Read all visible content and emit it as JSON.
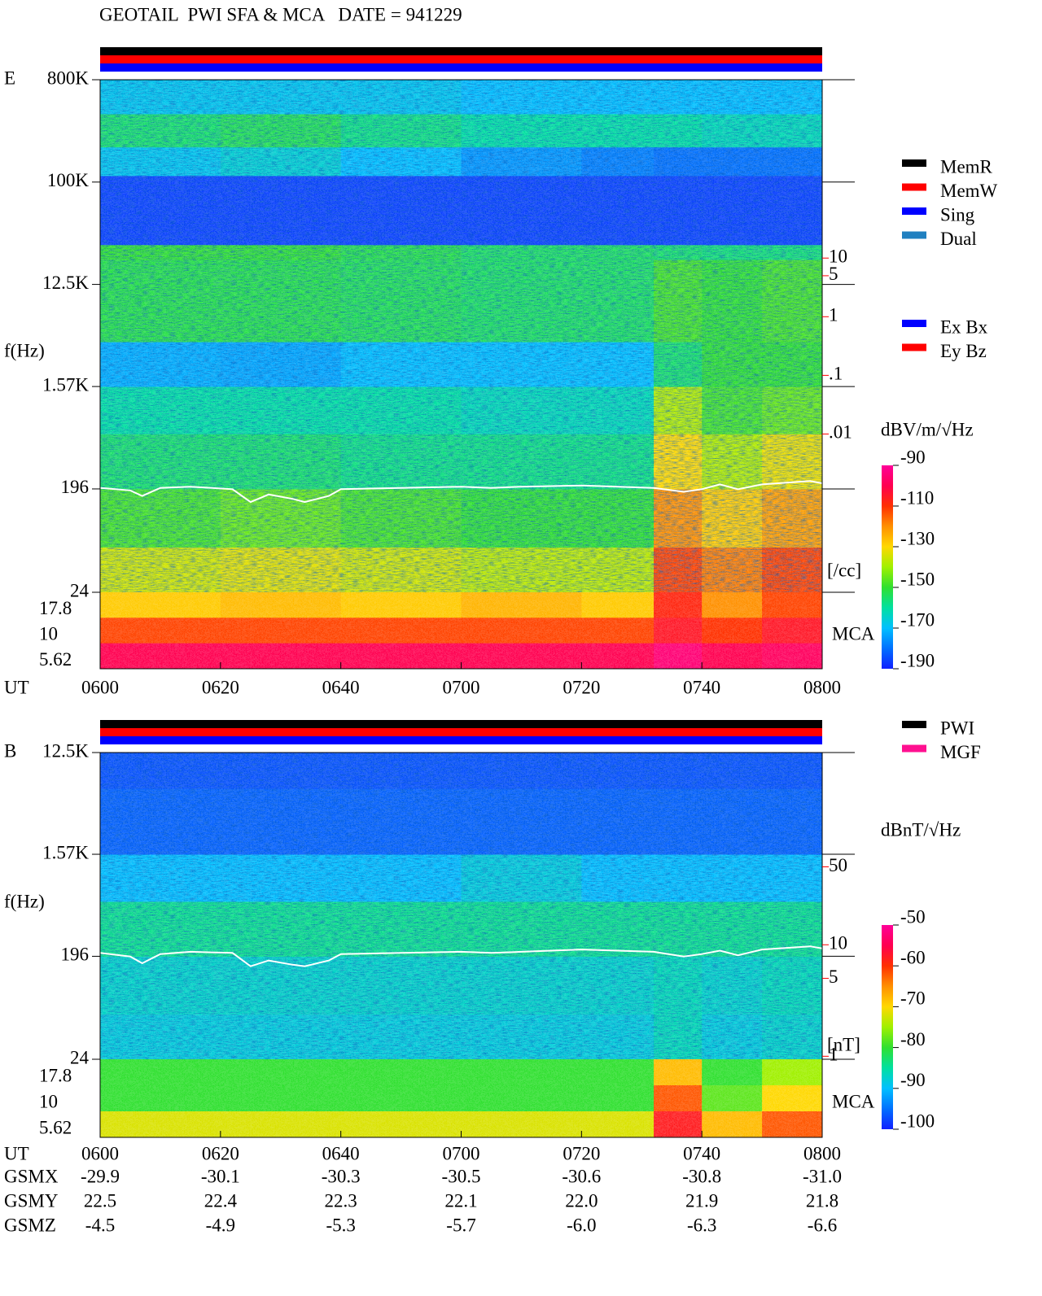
{
  "chart_data": [
    {
      "type": "spectrogram",
      "title": "GEOTAIL  PWI SFA & MCA   DATE = 941229",
      "panel_label": "E",
      "ylabel": "f(Hz)",
      "xlabel": "UT",
      "xlim": [
        0,
        120
      ],
      "xticks": [
        {
          "value": 0,
          "label": "0600"
        },
        {
          "value": 20,
          "label": "0620"
        },
        {
          "value": 40,
          "label": "0640"
        },
        {
          "value": 60,
          "label": "0700"
        },
        {
          "value": 80,
          "label": "0720"
        },
        {
          "value": 100,
          "label": "0740"
        },
        {
          "value": 120,
          "label": "0800"
        }
      ],
      "ylim": [
        24,
        800000
      ],
      "log_y": true,
      "yticks": [
        {
          "value": 800000,
          "label": "800K"
        },
        {
          "value": 100000,
          "label": "100K"
        },
        {
          "value": 12500,
          "label": "12.5K"
        },
        {
          "value": 1570,
          "label": "1.57K"
        },
        196,
        24
      ],
      "y2lim": [
        2e-05,
        11000
      ],
      "y2color": "#ff0000",
      "y2label": "[/cc]",
      "y2ticks": [
        10,
        5,
        1,
        {
          "value": 0.1,
          "label": ".1"
        },
        {
          "value": 0.01,
          "label": ".01"
        }
      ],
      "time_edges": [
        0,
        20,
        40,
        60,
        80,
        92,
        100,
        110,
        120
      ],
      "freq_edges": [
        24,
        60,
        196,
        600,
        1570,
        3900,
        20700,
        28000,
        114000,
        204000,
        400000,
        800000
      ],
      "levels": [
        [
          -135,
          -133,
          -135,
          -137,
          -137,
          -112,
          -118,
          -112
        ],
        [
          -148,
          -145,
          -148,
          -150,
          -150,
          -120,
          -128,
          -122
        ],
        [
          -155,
          -155,
          -157,
          -157,
          -157,
          -130,
          -138,
          -132
        ],
        [
          -160,
          -160,
          -160,
          -162,
          -162,
          -138,
          -148,
          -145
        ],
        [
          -172,
          -173,
          -170,
          -170,
          -170,
          -155,
          -150,
          -150
        ],
        [
          -152,
          -152,
          -153,
          -154,
          -154,
          -148,
          -150,
          -148
        ],
        [
          -150,
          -150,
          -152,
          -154,
          -154,
          -155,
          -156,
          -156
        ],
        [
          -186,
          -186,
          -186,
          -186,
          -186,
          -186,
          -186,
          -186
        ],
        [
          -168,
          -165,
          -170,
          -175,
          -178,
          -180,
          -180,
          -180
        ],
        [
          -155,
          -153,
          -157,
          -160,
          -160,
          -160,
          -162,
          -162
        ],
        [
          -168,
          -168,
          -168,
          -170,
          -170,
          -170,
          -170,
          -170
        ]
      ],
      "mca": {
        "label": "MCA",
        "channels": [
          17.8,
          10,
          5.62
        ],
        "levels": [
          [
            -128,
            -126,
            -128,
            -125,
            -128,
            -108,
            -120,
            -112
          ],
          [
            -112,
            -112,
            -112,
            -112,
            -112,
            -105,
            -110,
            -105
          ],
          [
            -100,
            -100,
            -100,
            -100,
            -100,
            -95,
            -100,
            -98
          ]
        ]
      },
      "zlim": [
        -190,
        -90
      ],
      "zticks": [
        -90,
        -110,
        -130,
        -150,
        -170,
        -190
      ],
      "zlabel": "dBV/m/√Hz",
      "colormap": [
        "#1020ff",
        "#0070ff",
        "#00c0ff",
        "#00e0a0",
        "#30e030",
        "#a0f000",
        "#ffd800",
        "#ff9000",
        "#ff3000",
        "#ff0050",
        "#ff0098"
      ],
      "line": {
        "color": "#ffffff",
        "x": [
          0,
          5,
          7,
          10,
          15,
          22,
          25,
          28,
          32,
          34,
          38,
          40,
          50,
          60,
          65,
          70,
          80,
          92,
          97,
          100,
          103,
          106,
          110,
          118,
          120
        ],
        "values": [
          200,
          190,
          170,
          200,
          205,
          195,
          150,
          175,
          160,
          150,
          170,
          195,
          200,
          205,
          200,
          205,
          210,
          200,
          185,
          195,
          215,
          195,
          215,
          230,
          220
        ]
      },
      "status_colors": [
        "#000000",
        "#ff0000",
        "#0000ff"
      ],
      "legend": [
        [
          {
            "name": "MemR",
            "color": "#000000"
          },
          {
            "name": "MemW",
            "color": "#ff0000"
          },
          {
            "name": "Sing",
            "color": "#0000ff"
          },
          {
            "name": "Dual",
            "color": "#2080c0"
          }
        ],
        [
          {
            "name": "Ex Bx",
            "color": "#0000ff"
          },
          {
            "name": "Ey Bz",
            "color": "#ff0000"
          }
        ]
      ]
    },
    {
      "type": "spectrogram",
      "panel_label": "B",
      "ylabel": "f(Hz)",
      "xlabel": "UT",
      "xlim": [
        0,
        120
      ],
      "xticks": [
        {
          "value": 0,
          "label": "0600"
        },
        {
          "value": 20,
          "label": "0620"
        },
        {
          "value": 40,
          "label": "0640"
        },
        {
          "value": 60,
          "label": "0700"
        },
        {
          "value": 80,
          "label": "0720"
        },
        {
          "value": 100,
          "label": "0740"
        },
        {
          "value": 120,
          "label": "0800"
        }
      ],
      "ylim": [
        24,
        12500
      ],
      "log_y": true,
      "yticks": [
        {
          "value": 12500,
          "label": "12.5K"
        },
        {
          "value": 1570,
          "label": "1.57K"
        },
        196,
        24
      ],
      "y2lim": [
        0.94,
        530
      ],
      "y2color": "#ff0000",
      "y2label": "[nT]",
      "y2ticks": [
        50,
        10,
        5,
        1
      ],
      "time_edges": [
        0,
        20,
        40,
        60,
        80,
        92,
        100,
        110,
        120
      ],
      "freq_edges": [
        24,
        60,
        196,
        600,
        1570,
        6000,
        12500
      ],
      "levels": [
        [
          -88,
          -88,
          -88,
          -88,
          -88,
          -86,
          -88,
          -87
        ],
        [
          -87,
          -87,
          -87,
          -87,
          -87,
          -86,
          -87,
          -86
        ],
        [
          -84,
          -84,
          -84,
          -84,
          -84,
          -84,
          -84,
          -84
        ],
        [
          -90,
          -90,
          -90,
          -88,
          -90,
          -90,
          -90,
          -90
        ],
        [
          -96,
          -96,
          -96,
          -96,
          -96,
          -96,
          -96,
          -96
        ],
        [
          -97,
          -97,
          -97,
          -97,
          -97,
          -97,
          -97,
          -97
        ]
      ],
      "mca": {
        "label": "MCA",
        "channels": [
          17.8,
          10,
          5.62
        ],
        "levels": [
          [
            -80,
            -80,
            -80,
            -80,
            -80,
            -68,
            -80,
            -75
          ],
          [
            -80,
            -80,
            -80,
            -80,
            -80,
            -62,
            -78,
            -70
          ],
          [
            -72,
            -72,
            -72,
            -72,
            -72,
            -58,
            -68,
            -62
          ]
        ]
      },
      "zlim": [
        -100,
        -50
      ],
      "zticks": [
        -50,
        -60,
        -70,
        -80,
        -90,
        -100
      ],
      "zlabel": "dBnT/√Hz",
      "colormap": [
        "#1020ff",
        "#0070ff",
        "#00c0ff",
        "#00e0a0",
        "#30e030",
        "#a0f000",
        "#ffd800",
        "#ff9000",
        "#ff3000",
        "#ff0050",
        "#ff0098"
      ],
      "line": {
        "color": "#ffffff",
        "x": [
          0,
          5,
          7,
          10,
          15,
          22,
          25,
          28,
          32,
          34,
          38,
          40,
          50,
          60,
          65,
          70,
          80,
          92,
          97,
          100,
          103,
          106,
          110,
          118,
          120
        ],
        "values": [
          210,
          195,
          170,
          205,
          215,
          210,
          160,
          180,
          165,
          160,
          180,
          205,
          210,
          215,
          210,
          215,
          225,
          215,
          195,
          205,
          220,
          200,
          225,
          240,
          230
        ]
      },
      "status_colors": [
        "#000000",
        "#ff0000",
        "#0000ff"
      ],
      "legend": [
        [
          {
            "name": "PWI",
            "color": "#000000"
          },
          {
            "name": "MGF",
            "color": "#ff1090"
          }
        ]
      ]
    }
  ],
  "orbit": {
    "rows": [
      {
        "name": "GSMX",
        "values": [
          "-29.9",
          "-30.1",
          "-30.3",
          "-30.5",
          "-30.6",
          "-30.8",
          "-31.0"
        ]
      },
      {
        "name": "GSMY",
        "values": [
          "22.5",
          "22.4",
          "22.3",
          "22.1",
          "22.0",
          "21.9",
          "21.8"
        ]
      },
      {
        "name": "GSMZ",
        "values": [
          "-4.5",
          "-4.9",
          "-5.3",
          "-5.7",
          "-6.0",
          "-6.3",
          "-6.6"
        ]
      }
    ]
  }
}
